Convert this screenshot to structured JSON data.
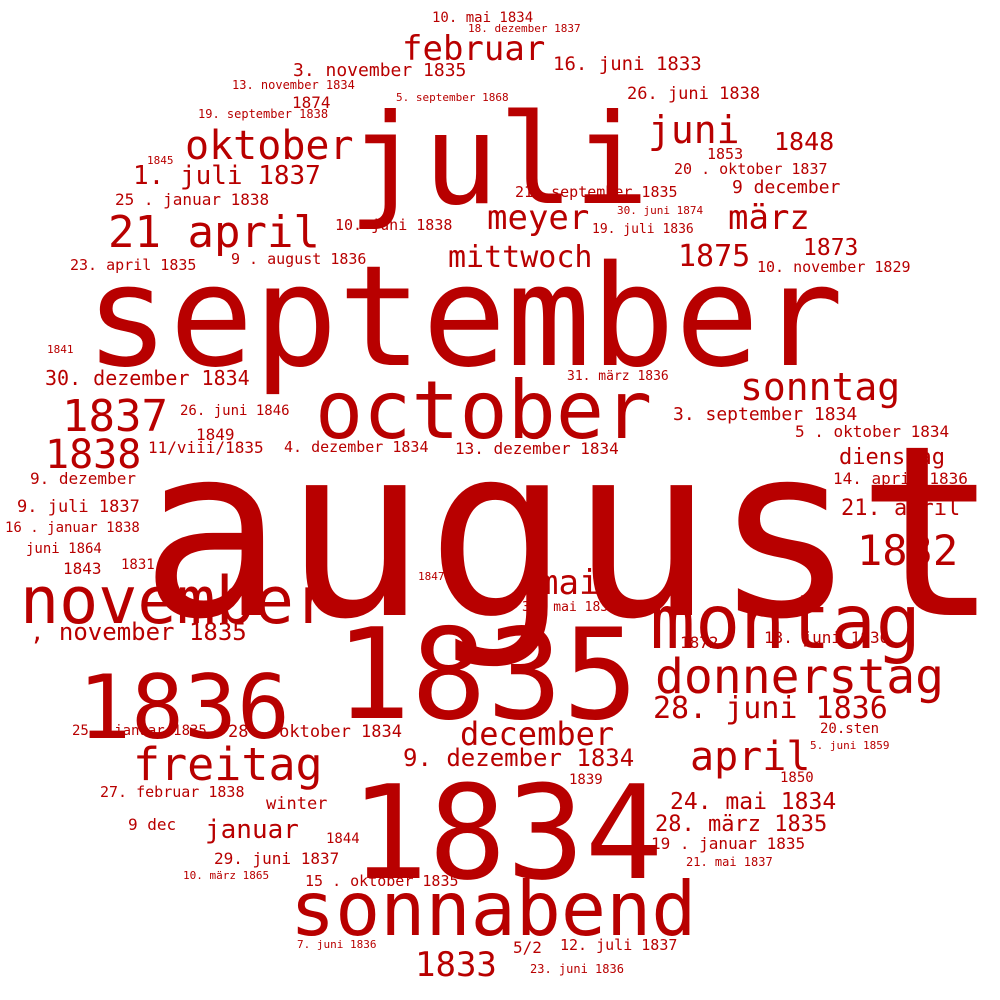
{
  "color": "#b80000",
  "words": [
    "august",
    "september",
    "1835",
    "1834",
    "juli",
    "sonnabend",
    "october",
    "montag",
    "1836",
    "november",
    "donnerstag",
    "21 april",
    "freitag",
    "december",
    "1837",
    "1838",
    "1832",
    "april",
    "sonntag",
    "oktober",
    "28. juni 1836",
    "februar",
    "juni",
    "märz",
    "meyer",
    "1833",
    "mai",
    "1875",
    "mittwoch",
    "1848",
    "1. juli 1837",
    "24. mai 1834",
    "9. dezember 1834",
    "28. märz 1835",
    "30. dezember 1834",
    "januar",
    ", november 1835",
    "16. juni 1833",
    "3. november 1835",
    "3. september 1834",
    "1873",
    "21. april",
    "dienstag",
    "9 december",
    "26. juni 1838",
    "25 . januar 1838",
    "9. juli 1837",
    "5 . oktober 1834",
    "14. april 1836",
    "10. november 1829",
    "23. april 1835",
    "20 . oktober 1837",
    "21. september 1835",
    "13. dezember 1834",
    "4. dezember 1834",
    "9. dezember",
    "1874",
    "1853",
    "29. juni 1837",
    "28 . oktober 1834",
    "19 . januar 1835",
    "13. juni 1836",
    "27. februar 1838",
    "12. juli 1837",
    "15 . oktober 1835",
    "9 . august 1836",
    "10. juni 1838",
    "winter",
    "9 dec",
    "16 . januar 1838",
    "juni 1864",
    "1843",
    "25 . januar 1835",
    "11/viii/1835",
    "1849",
    "26. juni 1846",
    "1872",
    "5/2",
    "1831",
    "1839",
    "1850",
    "1844",
    "20.sten",
    "19. juli 1836",
    "31. mai 1836",
    "31. märz 1836",
    "10. mai 1834",
    "13. november 1834",
    "19. september 1838",
    "23. juni 1836",
    "5. september 1868",
    "18. dezember 1837",
    "30. juni 1874",
    "21. mai 1837",
    "7. juni 1836",
    "5. juni 1859",
    "10. märz 1865",
    "1847",
    "1841",
    "1845"
  ]
}
